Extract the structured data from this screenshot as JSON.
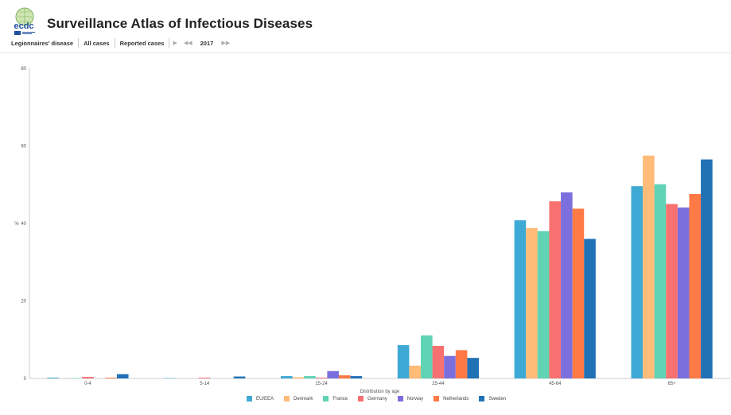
{
  "header": {
    "title": "Surveillance Atlas of Infectious Diseases",
    "logo_text": "ecdc"
  },
  "toolbar": {
    "disease": "Legionnaires' disease",
    "cases": "All cases",
    "measure": "Reported cases",
    "year": "2017"
  },
  "colors": {
    "EU/EEA": "#3ea9d4",
    "Denmark": "#ffbb78",
    "France": "#5fd3b3",
    "Germany": "#f87171",
    "Norway": "#7b6fde",
    "Netherlands": "#ff7a45",
    "Sweden": "#2171b5"
  },
  "chart_data": {
    "type": "bar",
    "xlabel": "Distribution by age",
    "ylabel": "%",
    "ylim": [
      0,
      80
    ],
    "yticks": [
      0,
      20,
      40,
      60,
      80
    ],
    "categories": [
      "0-4",
      "5-14",
      "15-24",
      "25-44",
      "45-64",
      "65+"
    ],
    "legend_position": "bottom",
    "grid": false,
    "series": [
      {
        "name": "EU/EEA",
        "values": [
          0.2,
          0.1,
          0.6,
          8.6,
          40.8,
          49.6
        ]
      },
      {
        "name": "Denmark",
        "values": [
          0.0,
          0.0,
          0.3,
          3.3,
          38.8,
          57.5
        ]
      },
      {
        "name": "France",
        "values": [
          0.1,
          0.0,
          0.6,
          11.1,
          38.0,
          50.1
        ]
      },
      {
        "name": "Germany",
        "values": [
          0.4,
          0.2,
          0.2,
          8.4,
          45.7,
          45.0
        ]
      },
      {
        "name": "Norway",
        "values": [
          0.0,
          0.0,
          1.9,
          5.8,
          48.0,
          44.1
        ]
      },
      {
        "name": "Netherlands",
        "values": [
          0.2,
          0.0,
          0.8,
          7.3,
          43.8,
          47.6
        ]
      },
      {
        "name": "Sweden",
        "values": [
          1.1,
          0.5,
          0.6,
          5.3,
          36.0,
          56.5
        ]
      }
    ]
  }
}
